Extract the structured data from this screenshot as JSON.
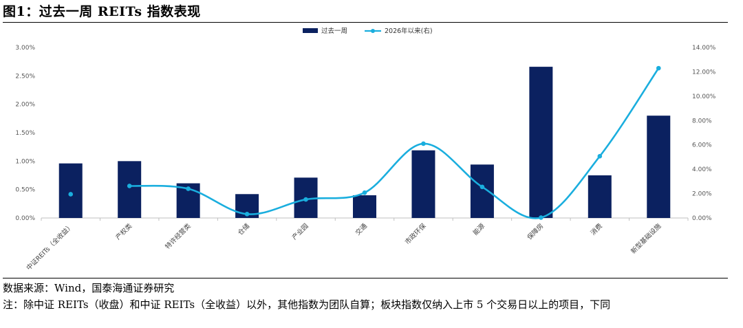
{
  "page": {
    "figure_title": "图1：过去一周 REITs 指数表现",
    "source": "数据来源：Wind，国泰海通证券研究",
    "note": "注：除中证 REITs（收盘）和中证 REITs（全收益）以外，其他指数为团队自算；板块指数仅纳入上市 5 个交易日以上的项目，下同"
  },
  "chart_data": {
    "type": "bar",
    "title": "图1：过去一周 REITs 指数表现",
    "categories": [
      "中证REITs（全收益）",
      "产权类",
      "特许经营类",
      "仓储",
      "产业园",
      "交通",
      "市政环保",
      "能源",
      "保障房",
      "消费",
      "新型基础设施"
    ],
    "series": [
      {
        "name": "过去一周",
        "type": "bar",
        "axis": "left",
        "color": "#0b2160",
        "values": [
          0.96,
          1.0,
          0.61,
          0.42,
          0.71,
          0.4,
          1.19,
          0.94,
          2.66,
          0.75,
          1.8
        ]
      },
      {
        "name": "2026年以来(右)",
        "type": "line",
        "axis": "right",
        "color": "#1aaede",
        "values": [
          1.95,
          2.63,
          2.4,
          0.32,
          1.52,
          2.08,
          6.1,
          2.55,
          0.03,
          5.07,
          12.3
        ]
      }
    ],
    "y_left": {
      "min": 0,
      "max": 3,
      "step": 0.5,
      "ticks": [
        "0.00%",
        "0.50%",
        "1.00%",
        "1.50%",
        "2.00%",
        "2.50%",
        "3.00%"
      ]
    },
    "y_right": {
      "min": 0,
      "max": 14,
      "step": 2,
      "ticks": [
        "0.00%",
        "2.00%",
        "4.00%",
        "6.00%",
        "8.00%",
        "10.00%",
        "12.00%",
        "14.00%"
      ]
    },
    "legend_position": "top-center",
    "grid": false,
    "xlabel": "",
    "ylabel": ""
  },
  "colors": {
    "bar": "#0b2160",
    "line": "#1aaede",
    "axis": "#bfbfbf",
    "tick_text": "#555555"
  }
}
